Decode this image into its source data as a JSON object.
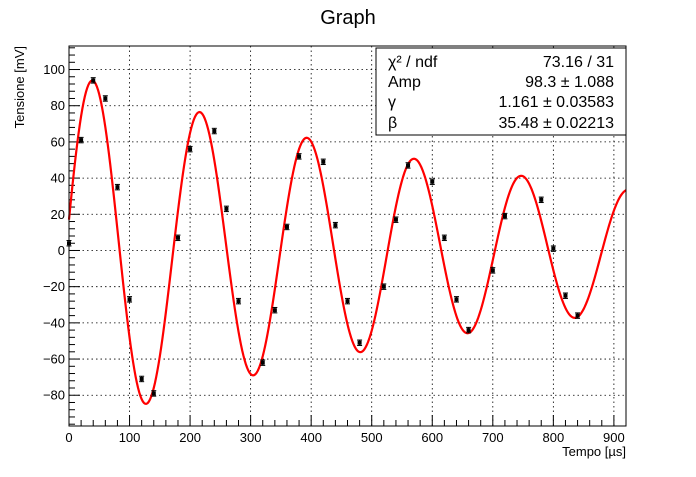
{
  "chart_data": {
    "type": "scatter",
    "title": "Graph",
    "xlabel": "Tempo [µs]",
    "ylabel": "Tensione [mV]",
    "xlim": [
      0,
      920
    ],
    "ylim": [
      -97,
      113
    ],
    "grid": true,
    "x_ticks": [
      0,
      100,
      200,
      300,
      400,
      500,
      600,
      700,
      800,
      900
    ],
    "y_ticks": [
      -80,
      -60,
      -40,
      -20,
      0,
      20,
      40,
      60,
      80,
      100
    ],
    "points": [
      {
        "x": 0,
        "y": 4,
        "err": 1.5
      },
      {
        "x": 20,
        "y": 61,
        "err": 1.5
      },
      {
        "x": 40,
        "y": 94,
        "err": 1.5
      },
      {
        "x": 60,
        "y": 84,
        "err": 1.5
      },
      {
        "x": 80,
        "y": 35,
        "err": 1.5
      },
      {
        "x": 100,
        "y": -27,
        "err": 1.5
      },
      {
        "x": 120,
        "y": -71,
        "err": 1.5
      },
      {
        "x": 140,
        "y": -79,
        "err": 1.5
      },
      {
        "x": 180,
        "y": 7,
        "err": 1.5
      },
      {
        "x": 200,
        "y": 56,
        "err": 1.5
      },
      {
        "x": 240,
        "y": 66,
        "err": 1.5
      },
      {
        "x": 260,
        "y": 23,
        "err": 1.5
      },
      {
        "x": 280,
        "y": -28,
        "err": 1.5
      },
      {
        "x": 340,
        "y": -33,
        "err": 1.5
      },
      {
        "x": 320,
        "y": -62,
        "err": 1.5
      },
      {
        "x": 360,
        "y": 13,
        "err": 1.5
      },
      {
        "x": 380,
        "y": 52,
        "err": 1.5
      },
      {
        "x": 420,
        "y": 49,
        "err": 1.5
      },
      {
        "x": 440,
        "y": 14,
        "err": 1.5
      },
      {
        "x": 460,
        "y": -28,
        "err": 1.5
      },
      {
        "x": 480,
        "y": -51,
        "err": 1.5
      },
      {
        "x": 520,
        "y": -20,
        "err": 1.5
      },
      {
        "x": 540,
        "y": 17,
        "err": 1.5
      },
      {
        "x": 560,
        "y": 47,
        "err": 1.5
      },
      {
        "x": 600,
        "y": 38,
        "err": 1.5
      },
      {
        "x": 620,
        "y": 7,
        "err": 1.5
      },
      {
        "x": 640,
        "y": -27,
        "err": 1.5
      },
      {
        "x": 660,
        "y": -44,
        "err": 1.5
      },
      {
        "x": 700,
        "y": -11,
        "err": 1.5
      },
      {
        "x": 720,
        "y": 19,
        "err": 1.5
      },
      {
        "x": 780,
        "y": 28,
        "err": 1.5
      },
      {
        "x": 800,
        "y": 1,
        "err": 1.5
      },
      {
        "x": 820,
        "y": -25,
        "err": 1.5
      },
      {
        "x": 840,
        "y": -36,
        "err": 1.5
      }
    ],
    "fit": {
      "color": "#ff0000",
      "amp": 98.3,
      "gamma_per_ms": 1.161,
      "beta_per_ms": 35.48,
      "phase_deg": 10,
      "x_range": [
        0,
        920
      ]
    },
    "stats": [
      {
        "label": "χ² / ndf",
        "value": "73.16 / 31"
      },
      {
        "label": "Amp",
        "value": "98.3 ± 1.088"
      },
      {
        "label": "γ",
        "value": "1.161 ± 0.03583"
      },
      {
        "label": "β",
        "value": "35.48 ± 0.02213"
      }
    ],
    "colors": {
      "points": "#000000",
      "fit": "#ff0000",
      "grid": "#000000",
      "background": "#ffffff"
    }
  }
}
